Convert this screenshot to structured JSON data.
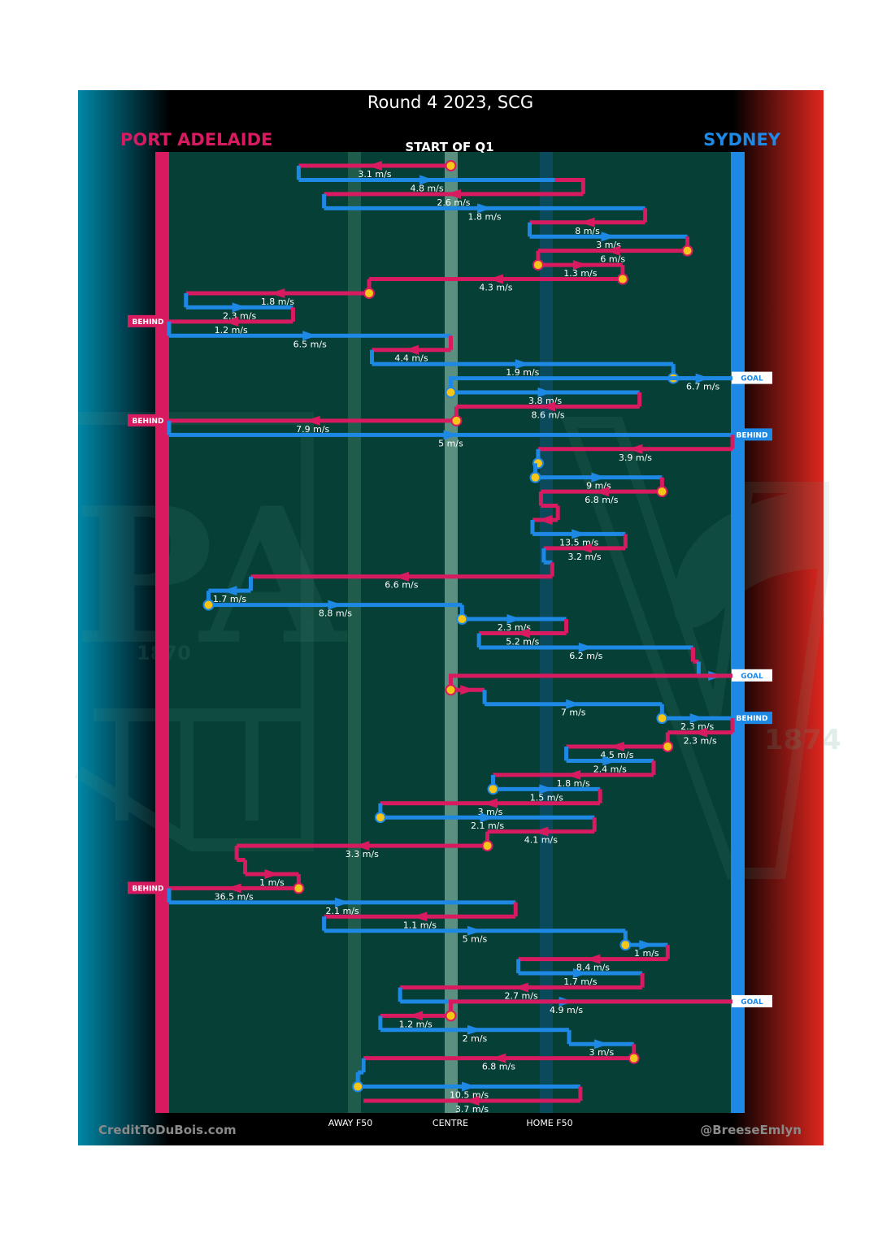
{
  "title": "Round 4 2023, SCG",
  "teams": {
    "left": {
      "name": "PORT ADELAIDE",
      "color": "#d81b60"
    },
    "right": {
      "name": "SYDNEY",
      "color": "#1e88e5"
    }
  },
  "start_label": "START OF Q1",
  "footer": {
    "left_credit": "CreditToDuBois.com",
    "right_credit": "@BreeseEmlyn"
  },
  "zones": [
    {
      "label": "AWAY F50",
      "at": 0.32
    },
    {
      "label": "CENTRE",
      "at": 0.5
    },
    {
      "label": "HOME F50",
      "at": 0.675
    }
  ],
  "colors": {
    "field": "#053f35",
    "background": "#000000",
    "port": "#d81b60",
    "sydney": "#1e88e5",
    "stoppage": "#f5c518",
    "label_text": "#ffffff"
  },
  "logos": {
    "left_year": "1870",
    "right_year": "1874",
    "left_monogram": "PA"
  },
  "chart_data": {
    "type": "line",
    "title": "Round 4 2023, SCG",
    "xlabel": "",
    "ylabel": "",
    "xlim": [
      0,
      1
    ],
    "x_axis_note": "0 = Port Adelaide goal line, 1 = Sydney goal line",
    "tick_labels": [
      "AWAY F50",
      "CENTRE",
      "HOME F50"
    ],
    "series": [
      {
        "name": "Port Adelaide",
        "color": "#d81b60"
      },
      {
        "name": "Sydney",
        "color": "#1e88e5"
      }
    ],
    "chains": [
      {
        "team": "port",
        "from": 0.5,
        "to": 0.23,
        "speed": "3.1 m/s",
        "stop": true
      },
      {
        "team": "syd",
        "from": 0.23,
        "to": 0.685,
        "speed": "4.8 m/s"
      },
      {
        "team": "port",
        "from": 0.735,
        "to": 0.275,
        "speed": "2.6 m/s"
      },
      {
        "team": "syd",
        "from": 0.275,
        "to": 0.845,
        "speed": "1.8 m/s"
      },
      {
        "team": "port",
        "from": 0.845,
        "to": 0.64,
        "speed": "8 m/s"
      },
      {
        "team": "syd",
        "from": 0.64,
        "to": 0.92,
        "speed": "3 m/s"
      },
      {
        "team": "port",
        "from": 0.92,
        "to": 0.655,
        "speed": "6 m/s",
        "stop": true
      },
      {
        "team": "port",
        "from": 0.655,
        "to": 0.805,
        "speed": "1.3 m/s",
        "stop": true
      },
      {
        "team": "port",
        "from": 0.805,
        "to": 0.355,
        "speed": "4.3 m/s",
        "stop": true
      },
      {
        "team": "port",
        "from": 0.355,
        "to": 0.03,
        "speed": "1.8 m/s",
        "stop": true
      },
      {
        "team": "syd",
        "from": 0.03,
        "to": 0.22,
        "speed": "2.3 m/s"
      },
      {
        "team": "port",
        "from": 0.22,
        "to": 0.0,
        "speed": "1.2 m/s",
        "result": "BEHIND"
      },
      {
        "team": "syd",
        "from": 0.0,
        "to": 0.5,
        "speed": "6.5 m/s"
      },
      {
        "team": "port",
        "from": 0.5,
        "to": 0.36,
        "speed": "4.4 m/s"
      },
      {
        "team": "syd",
        "from": 0.36,
        "to": 0.895,
        "speed": "1.9 m/s"
      },
      {
        "team": "syd",
        "from": 0.895,
        "to": 1.0,
        "speed": "6.7 m/s",
        "stop": true,
        "result": "GOAL"
      },
      {
        "team": "syd",
        "from": 0.5,
        "to": 0.835,
        "speed": "3.8 m/s",
        "stop": true
      },
      {
        "team": "port",
        "from": 0.835,
        "to": 0.51,
        "speed": "8.6 m/s"
      },
      {
        "team": "port",
        "from": 0.51,
        "to": 0.0,
        "speed": "7.9 m/s",
        "stop": true,
        "result": "BEHIND"
      },
      {
        "team": "syd",
        "from": 0.0,
        "to": 1.0,
        "speed": "5 m/s",
        "result": "BEHIND"
      },
      {
        "team": "port",
        "from": 1.0,
        "to": 0.655,
        "speed": "3.9 m/s"
      },
      {
        "team": "syd",
        "from": 0.655,
        "to": 0.65,
        "speed": "",
        "stop": true
      },
      {
        "team": "syd",
        "from": 0.65,
        "to": 0.875,
        "speed": "9 m/s",
        "stop": true
      },
      {
        "team": "port",
        "from": 0.875,
        "to": 0.66,
        "speed": "6.8 m/s",
        "stop": true
      },
      {
        "team": "port",
        "from": 0.66,
        "to": 0.69,
        "speed": ""
      },
      {
        "team": "port",
        "from": 0.69,
        "to": 0.645,
        "speed": ""
      },
      {
        "team": "syd",
        "from": 0.645,
        "to": 0.81,
        "speed": "13.5 m/s"
      },
      {
        "team": "port",
        "from": 0.81,
        "to": 0.665,
        "speed": "3.2 m/s"
      },
      {
        "team": "syd",
        "from": 0.665,
        "to": 0.68,
        "speed": ""
      },
      {
        "team": "port",
        "from": 0.68,
        "to": 0.145,
        "speed": "6.6 m/s"
      },
      {
        "team": "syd",
        "from": 0.145,
        "to": 0.07,
        "speed": "1.7 m/s"
      },
      {
        "team": "syd",
        "from": 0.07,
        "to": 0.52,
        "speed": "8.8 m/s",
        "stop": true
      },
      {
        "team": "syd",
        "from": 0.52,
        "to": 0.705,
        "speed": "2.3 m/s",
        "stop": true
      },
      {
        "team": "port",
        "from": 0.705,
        "to": 0.55,
        "speed": "5.2 m/s"
      },
      {
        "team": "syd",
        "from": 0.55,
        "to": 0.93,
        "speed": "6.2 m/s"
      },
      {
        "team": "port",
        "from": 0.93,
        "to": 0.94,
        "speed": ""
      },
      {
        "team": "syd",
        "from": 0.94,
        "to": 1.0,
        "speed": "",
        "result": "GOAL"
      },
      {
        "team": "port",
        "from": 0.5,
        "to": 0.56,
        "speed": "",
        "stop": true
      },
      {
        "team": "syd",
        "from": 0.56,
        "to": 0.875,
        "speed": "7 m/s"
      },
      {
        "team": "syd",
        "from": 0.875,
        "to": 1.0,
        "speed": "2.3 m/s",
        "stop": true,
        "result": "BEHIND"
      },
      {
        "team": "port",
        "from": 1.0,
        "to": 0.885,
        "speed": "2.3 m/s"
      },
      {
        "team": "port",
        "from": 0.885,
        "to": 0.705,
        "speed": "4.5 m/s",
        "stop": true
      },
      {
        "team": "syd",
        "from": 0.705,
        "to": 0.86,
        "speed": "2.4 m/s"
      },
      {
        "team": "port",
        "from": 0.86,
        "to": 0.575,
        "speed": "1.8 m/s"
      },
      {
        "team": "syd",
        "from": 0.575,
        "to": 0.765,
        "speed": "1.5 m/s",
        "stop": true
      },
      {
        "team": "port",
        "from": 0.765,
        "to": 0.375,
        "speed": "3 m/s"
      },
      {
        "team": "syd",
        "from": 0.375,
        "to": 0.755,
        "speed": "2.1 m/s",
        "stop": true
      },
      {
        "team": "port",
        "from": 0.755,
        "to": 0.565,
        "speed": "4.1 m/s"
      },
      {
        "team": "port",
        "from": 0.565,
        "to": 0.12,
        "speed": "3.3 m/s",
        "stop": true
      },
      {
        "team": "port",
        "from": 0.12,
        "to": 0.135,
        "speed": ""
      },
      {
        "team": "port",
        "from": 0.135,
        "to": 0.23,
        "speed": "1 m/s"
      },
      {
        "team": "port",
        "from": 0.23,
        "to": 0.0,
        "speed": "36.5 m/s",
        "stop": true,
        "result": "BEHIND"
      },
      {
        "team": "syd",
        "from": 0.0,
        "to": 0.615,
        "speed": "2.1 m/s"
      },
      {
        "team": "port",
        "from": 0.615,
        "to": 0.275,
        "speed": "1.1 m/s"
      },
      {
        "team": "syd",
        "from": 0.275,
        "to": 0.81,
        "speed": "5 m/s"
      },
      {
        "team": "syd",
        "from": 0.81,
        "to": 0.885,
        "speed": "1 m/s",
        "stop": true
      },
      {
        "team": "port",
        "from": 0.885,
        "to": 0.62,
        "speed": "8.4 m/s"
      },
      {
        "team": "syd",
        "from": 0.62,
        "to": 0.84,
        "speed": "1.7 m/s"
      },
      {
        "team": "port",
        "from": 0.84,
        "to": 0.41,
        "speed": "2.7 m/s"
      },
      {
        "team": "syd",
        "from": 0.41,
        "to": 1.0,
        "speed": "4.9 m/s",
        "result": "GOAL"
      },
      {
        "team": "port",
        "from": 0.5,
        "to": 0.375,
        "speed": "1.2 m/s",
        "stop": true
      },
      {
        "team": "syd",
        "from": 0.375,
        "to": 0.71,
        "speed": "2 m/s"
      },
      {
        "team": "syd",
        "from": 0.71,
        "to": 0.825,
        "speed": "3 m/s"
      },
      {
        "team": "port",
        "from": 0.825,
        "to": 0.345,
        "speed": "6.8 m/s",
        "stop": true
      },
      {
        "team": "syd",
        "from": 0.345,
        "to": 0.335,
        "speed": ""
      },
      {
        "team": "syd",
        "from": 0.335,
        "to": 0.73,
        "speed": "10.5 m/s",
        "stop": true
      },
      {
        "team": "port",
        "from": 0.73,
        "to": 0.345,
        "speed": "3.7 m/s"
      }
    ]
  }
}
